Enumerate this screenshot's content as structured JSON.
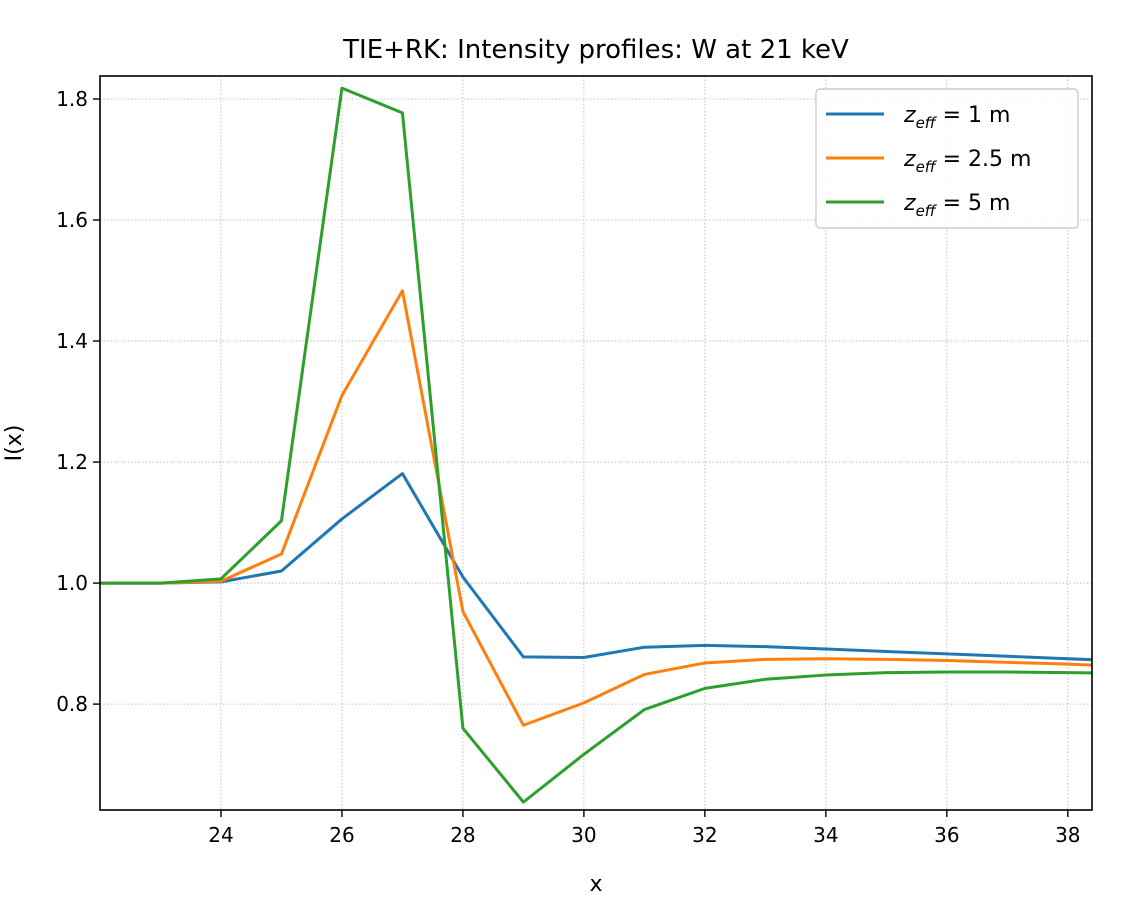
{
  "chart_data": {
    "type": "line",
    "title": "TIE+RK: Intensity profiles: W at 21 keV",
    "xlabel": "x",
    "ylabel": "I(x)",
    "xlim": [
      22.0,
      38.4
    ],
    "ylim": [
      0.625,
      1.838
    ],
    "xticks": [
      24,
      26,
      28,
      30,
      32,
      34,
      36,
      38
    ],
    "yticks": [
      0.8,
      1.0,
      1.2,
      1.4,
      1.6,
      1.8
    ],
    "grid": true,
    "legend_position": "top-right",
    "x": [
      22,
      23,
      24,
      25,
      26,
      27,
      28,
      29,
      30,
      31,
      32,
      33,
      34,
      35,
      36,
      37,
      38,
      39
    ],
    "series": [
      {
        "name_main": "z",
        "name_sub": "eff",
        "name_rest": " = 1 m",
        "color": "#1f77b4",
        "values": [
          1.0,
          1.0,
          1.002,
          1.02,
          1.106,
          1.181,
          1.01,
          0.878,
          0.877,
          0.894,
          0.897,
          0.895,
          0.891,
          0.887,
          0.883,
          0.879,
          0.875,
          0.871
        ]
      },
      {
        "name_main": "z",
        "name_sub": "eff",
        "name_rest": " = 2.5 m",
        "color": "#ff7f0e",
        "values": [
          1.0,
          1.0,
          1.003,
          1.048,
          1.31,
          1.483,
          0.953,
          0.765,
          0.802,
          0.849,
          0.868,
          0.874,
          0.875,
          0.874,
          0.872,
          0.869,
          0.866,
          0.862
        ]
      },
      {
        "name_main": "z",
        "name_sub": "eff",
        "name_rest": " = 5 m",
        "color": "#2ca02c",
        "values": [
          1.0,
          1.0,
          1.007,
          1.103,
          1.818,
          1.777,
          0.76,
          0.638,
          0.717,
          0.791,
          0.826,
          0.841,
          0.848,
          0.852,
          0.853,
          0.853,
          0.852,
          0.851
        ]
      }
    ]
  }
}
